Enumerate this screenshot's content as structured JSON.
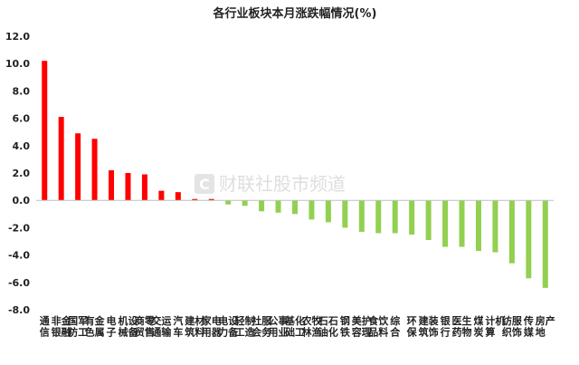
{
  "chart_data": {
    "type": "bar",
    "title": "各行业板块本月涨跌幅情况(%)",
    "categories": [
      "通信",
      "非银金融",
      "国防军工",
      "有色金属",
      "电子",
      "机械设备",
      "商贸零售",
      "交通运输",
      "汽车",
      "建筑材料",
      "家用电器",
      "电力设备",
      "轻工制造",
      "社会服务",
      "公用事业",
      "基础化工",
      "农林牧渔",
      "石油石化",
      "钢铁",
      "美容护理",
      "食品饮料",
      "综合",
      "环保",
      "建筑装饰",
      "银行",
      "医药生物",
      "煤炭",
      "计算机",
      "纺织服饰",
      "传媒",
      "房地产"
    ],
    "values": [
      10.2,
      6.1,
      4.9,
      4.5,
      2.2,
      2.0,
      1.9,
      0.7,
      0.6,
      0.1,
      0.1,
      -0.3,
      -0.4,
      -0.8,
      -0.9,
      -1.0,
      -1.4,
      -1.6,
      -2.0,
      -2.3,
      -2.4,
      -2.4,
      -2.5,
      -2.9,
      -3.4,
      -3.4,
      -3.7,
      -3.8,
      -4.6,
      -5.7,
      -6.4
    ],
    "ylim": [
      -8,
      12
    ],
    "yticks": [
      "12.0",
      "10.0",
      "8.0",
      "6.0",
      "4.0",
      "2.0",
      "0.0",
      "-2.0",
      "-4.0",
      "-6.0",
      "-8.0"
    ],
    "grid": false,
    "colors": {
      "positive": "#ff0000",
      "negative": "#92d050",
      "axis": "#bfbfbf"
    }
  },
  "watermark": {
    "logo_letter": "C",
    "text": "财联社股市频道"
  }
}
